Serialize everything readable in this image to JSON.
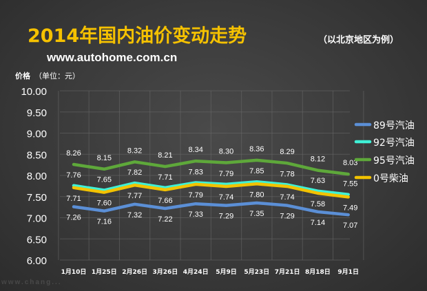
{
  "header": {
    "title": "2014年国内油价变动走势",
    "subtitle": "（以北京地区为例）",
    "website": "www.autohome.com.cn",
    "yaxis_name": "价格",
    "yaxis_unit": "（单位：元）",
    "watermark": "www.chang..."
  },
  "colors": {
    "title": "#f5c100",
    "series_89": "#5b8fd6",
    "series_92": "#3ff0d6",
    "series_95": "#5ea83a",
    "series_0": "#f2c200"
  },
  "chart_data": {
    "type": "line",
    "categories": [
      "1月10日",
      "1月25日",
      "2月26日",
      "3月26日",
      "4月24日",
      "5月9日",
      "5月23日",
      "7月21日",
      "8月18日",
      "9月1日"
    ],
    "ylim": [
      6.0,
      10.0
    ],
    "yticks": [
      "6.00",
      "6.50",
      "7.00",
      "7.50",
      "8.00",
      "8.50",
      "9.00",
      "9.50",
      "10.00"
    ],
    "grid": true,
    "legend_position": "right",
    "series": [
      {
        "name": "89号汽油",
        "color": "#5b8fd6",
        "values": [
          7.26,
          7.16,
          7.32,
          7.22,
          7.33,
          7.29,
          7.35,
          7.29,
          7.14,
          7.07
        ],
        "labels": [
          "7.26",
          "7.16",
          "7.32",
          "7.22",
          "7.33",
          "7.29",
          "7.35",
          "7.29",
          "7.14",
          "7.07"
        ]
      },
      {
        "name": "92号汽油",
        "color": "#3ff0d6",
        "values": [
          7.76,
          7.65,
          7.82,
          7.71,
          7.83,
          7.79,
          7.85,
          7.78,
          7.63,
          7.55
        ],
        "labels": [
          "7.76",
          "7.65",
          "7.82",
          "7.71",
          "7.83",
          "7.79",
          "7.85",
          "7.78",
          "7.63",
          "7.55"
        ]
      },
      {
        "name": "95号汽油",
        "color": "#5ea83a",
        "values": [
          8.26,
          8.15,
          8.32,
          8.21,
          8.34,
          8.3,
          8.36,
          8.29,
          8.12,
          8.03
        ],
        "labels": [
          "8.26",
          "8.15",
          "8.32",
          "8.21",
          "8.34",
          "8.30",
          "8.36",
          "8.29",
          "8.12",
          "8.03"
        ]
      },
      {
        "name": "0号柴油",
        "color": "#f2c200",
        "values": [
          7.71,
          7.6,
          7.77,
          7.66,
          7.79,
          7.74,
          7.8,
          7.74,
          7.58,
          7.49
        ],
        "labels": [
          "7.71",
          "7.60",
          "7.77",
          "7.66",
          "7.79",
          "7.74",
          "7.80",
          "7.74",
          "7.58",
          "7.49"
        ]
      }
    ]
  }
}
